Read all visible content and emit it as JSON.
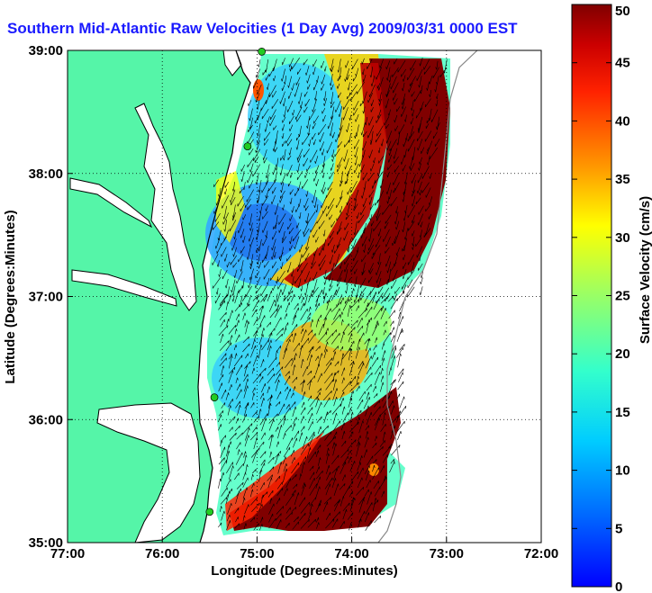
{
  "title": "Southern Mid-Atlantic Raw Velocities (1 Day Avg) 2009/03/31 0000 EST",
  "map": {
    "xlabel": "Longitude (Degrees:Minutes)",
    "ylabel": "Latitude (Degrees:Minutes)",
    "lon_range": [
      -77,
      -72
    ],
    "lat_range": [
      35,
      39
    ],
    "x_ticks": [
      {
        "value": -77,
        "label": "77:00"
      },
      {
        "value": -76,
        "label": "76:00"
      },
      {
        "value": -75,
        "label": "75:00"
      },
      {
        "value": -74,
        "label": "74:00"
      },
      {
        "value": -73,
        "label": "73:00"
      },
      {
        "value": -72,
        "label": "72:00"
      }
    ],
    "y_ticks": [
      {
        "value": 35,
        "label": "35:00"
      },
      {
        "value": 36,
        "label": "36:00"
      },
      {
        "value": 37,
        "label": "37:00"
      },
      {
        "value": 38,
        "label": "38:00"
      },
      {
        "value": 39,
        "label": "39:00"
      }
    ],
    "grid": "dotted",
    "land_color": "#55f5a8",
    "water_color": "#ffffff",
    "coastline_color": "#000000",
    "station_marker_color": "#22cc22",
    "stations": [
      {
        "lon": -74.95,
        "lat": 38.99
      },
      {
        "lon": -75.1,
        "lat": 38.22
      },
      {
        "lon": -75.45,
        "lat": 36.18
      },
      {
        "lon": -75.5,
        "lat": 35.25
      }
    ]
  },
  "colorbar": {
    "label": "Surface Velocity (cm/s)",
    "min": 0,
    "max": 50,
    "ticks": [
      "0",
      "5",
      "10",
      "15",
      "20",
      "25",
      "30",
      "35",
      "40",
      "45",
      "50"
    ],
    "colormap": "jet"
  }
}
